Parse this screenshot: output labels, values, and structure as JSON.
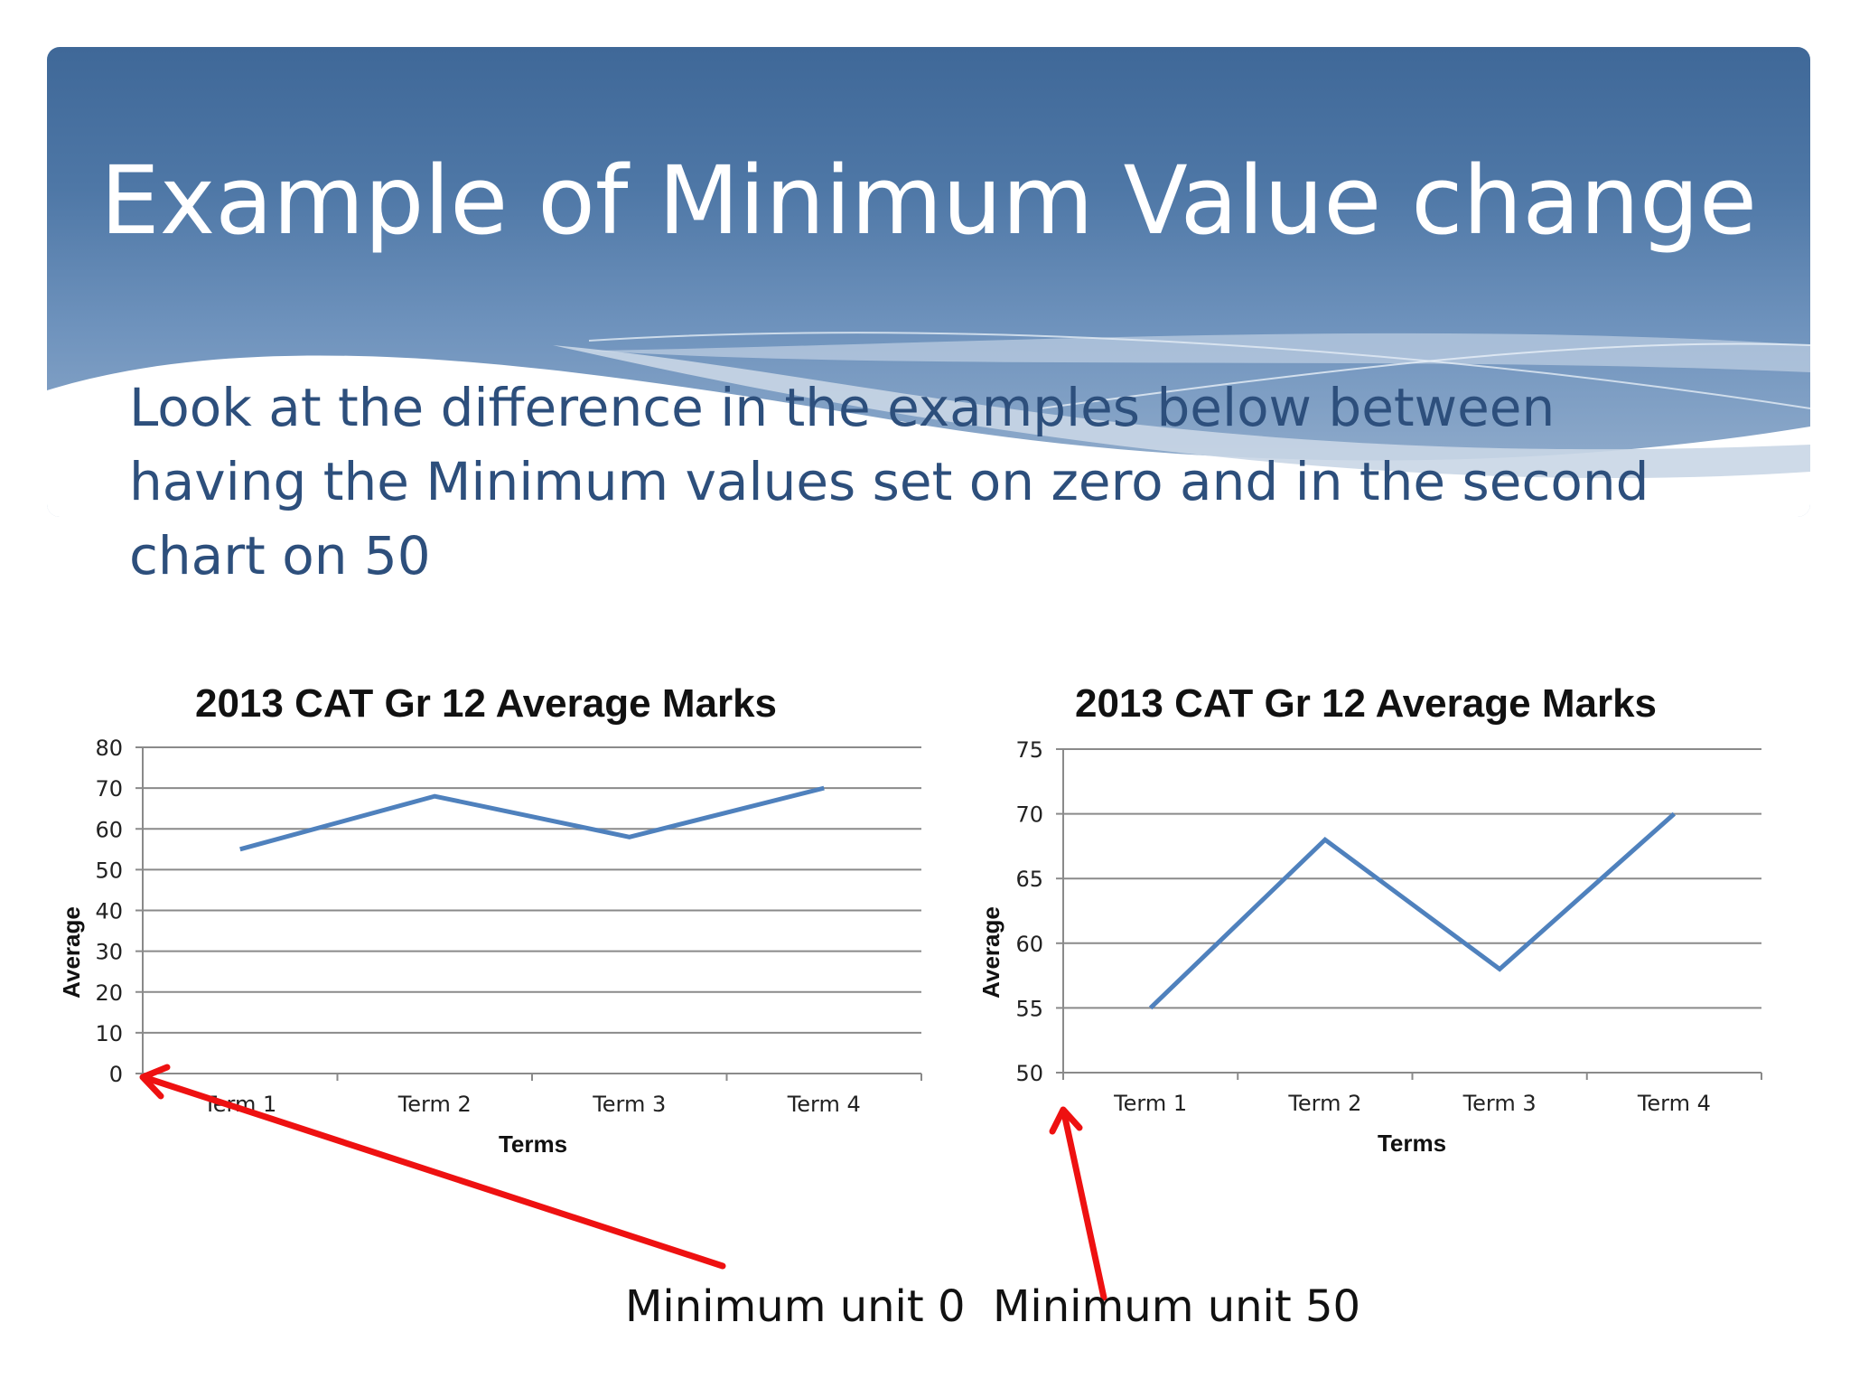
{
  "slide": {
    "title": "Example of Minimum Value change",
    "body": "Look at the difference in the examples below between having the Minimum values set on zero and in the second chart on 50"
  },
  "colors": {
    "banner_top": "#3f6898",
    "banner_bottom": "#9ab3d0",
    "body_text": "#2d4f7c",
    "series": "#4f81bd",
    "arrow": "#ee1111"
  },
  "annotations": [
    {
      "label": "Minimum unit 0"
    },
    {
      "label": "Minimum unit 50"
    }
  ],
  "chart_data": [
    {
      "type": "line",
      "title": "2013 CAT Gr 12 Average Marks",
      "xlabel": "Terms",
      "ylabel": "Average",
      "categories": [
        "Term 1",
        "Term 2",
        "Term 3",
        "Term 4"
      ],
      "values": [
        55,
        68,
        58,
        70
      ],
      "ylim": [
        0,
        80
      ],
      "yticks": [
        0,
        10,
        20,
        30,
        40,
        50,
        60,
        70,
        80
      ],
      "grid": true
    },
    {
      "type": "line",
      "title": "2013 CAT Gr 12 Average Marks",
      "xlabel": "Terms",
      "ylabel": "Average",
      "categories": [
        "Term 1",
        "Term 2",
        "Term 3",
        "Term 4"
      ],
      "values": [
        55,
        68,
        58,
        70
      ],
      "ylim": [
        50,
        75
      ],
      "yticks": [
        50,
        55,
        60,
        65,
        70,
        75
      ],
      "grid": true
    }
  ]
}
